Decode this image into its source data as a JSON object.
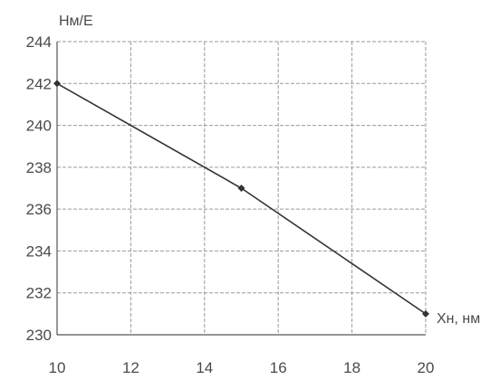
{
  "chart_data": {
    "type": "line",
    "title": "",
    "xlabel": "Xн, нм",
    "ylabel": "Нм/Е",
    "xlim": [
      10,
      20
    ],
    "ylim": [
      230,
      244
    ],
    "x_ticks": [
      10,
      12,
      14,
      16,
      18,
      20
    ],
    "y_ticks": [
      230,
      232,
      234,
      236,
      238,
      240,
      242,
      244
    ],
    "grid": true,
    "legend": "none",
    "series": [
      {
        "x": [
          10,
          15,
          20
        ],
        "values": [
          242,
          237,
          231
        ],
        "color": "#333333"
      }
    ]
  }
}
